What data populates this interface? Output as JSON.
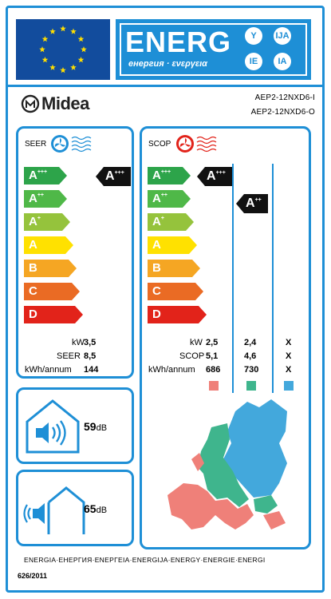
{
  "header": {
    "energy_title": "ENERG",
    "energy_subtitle": "енергия · ενεργεια",
    "language_badges": [
      "Y",
      "IJA",
      "IE",
      "IA"
    ],
    "brand_color": "#1e8fd6",
    "eu_blue": "#124c9d",
    "star_color": "#ffde00"
  },
  "brand": {
    "name": "Midea",
    "model_indoor": "AEP2-12NXD6-I",
    "model_outdoor": "AEP2-12NXD6-O"
  },
  "scale": {
    "classes": [
      {
        "letter": "A",
        "plus": "+++",
        "color": "#2da44a"
      },
      {
        "letter": "A",
        "plus": "++",
        "color": "#4fb848"
      },
      {
        "letter": "A",
        "plus": "+",
        "color": "#95c33c"
      },
      {
        "letter": "A",
        "plus": "",
        "color": "#ffe100"
      },
      {
        "letter": "B",
        "plus": "",
        "color": "#f5a623"
      },
      {
        "letter": "C",
        "plus": "",
        "color": "#ea6b24"
      },
      {
        "letter": "D",
        "plus": "",
        "color": "#e2231a"
      }
    ]
  },
  "cooling": {
    "label": "SEER",
    "rating": {
      "letter": "A",
      "plus": "+++"
    },
    "rows": [
      {
        "unit": "kW",
        "value": "3,5"
      },
      {
        "unit": "SEER",
        "value": "8,5"
      },
      {
        "unit": "kWh/annum",
        "value": "144"
      }
    ]
  },
  "heating": {
    "label": "SCOP",
    "rating_warm": {
      "letter": "A",
      "plus": "+++"
    },
    "rating_average": {
      "letter": "A",
      "plus": "++"
    },
    "rows": [
      {
        "unit": "kW",
        "warm": "2,5",
        "average": "2,4",
        "cold": "X"
      },
      {
        "unit": "SCOP",
        "warm": "5,1",
        "average": "4,6",
        "cold": "X"
      },
      {
        "unit": "kWh/annum",
        "warm": "686",
        "average": "730",
        "cold": "X"
      }
    ],
    "season_colors": [
      "#ef8079",
      "#3fb58d",
      "#43a8dc"
    ]
  },
  "noise": {
    "indoor_value": "59",
    "outdoor_value": "65",
    "unit": "dB"
  },
  "footer": {
    "energy_words": "ENERGIA·ЕНЕРГИЯ·ΕΝΕΡΓΕΙΑ·ENERGIJA·ENERGY·ENERGIE·ENERGI",
    "regulation": "626/2011"
  }
}
